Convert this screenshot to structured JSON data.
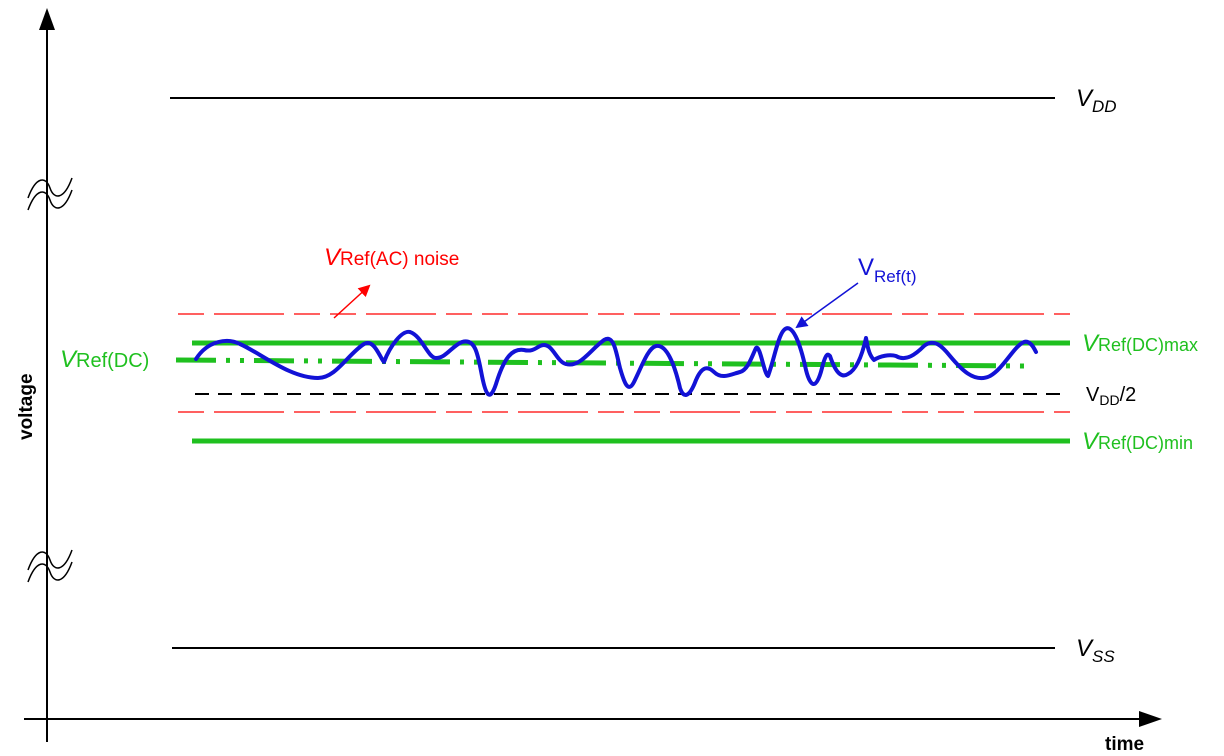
{
  "colors": {
    "black": "#000000",
    "green": "#1fc01f",
    "red": "#ff0000",
    "blue": "#1212d6"
  },
  "labels": {
    "vdd": {
      "main": "V",
      "sub": "DD"
    },
    "vss": {
      "main": "V",
      "sub": "SS"
    },
    "vref_dc": {
      "main": "V",
      "sub": "Ref(DC)"
    },
    "vref_dc_max": {
      "main": "V",
      "sub": "Ref(DC)max"
    },
    "vref_dc_min": {
      "main": "V",
      "sub": "Ref(DC)min"
    },
    "vdd_half": {
      "main": "V",
      "sub": "DD",
      "suffix": "/2"
    },
    "vref_ac_noise": {
      "main": "V",
      "sub": "Ref(AC)",
      "suffix": " noise"
    },
    "vref_t": {
      "main": "V",
      "sub": "Ref(t)"
    }
  },
  "axes": {
    "y_label": "voltage",
    "x_label": "time"
  },
  "icons": {
    "axis_break": "axis-break-icon",
    "arrow": "arrow-icon"
  }
}
